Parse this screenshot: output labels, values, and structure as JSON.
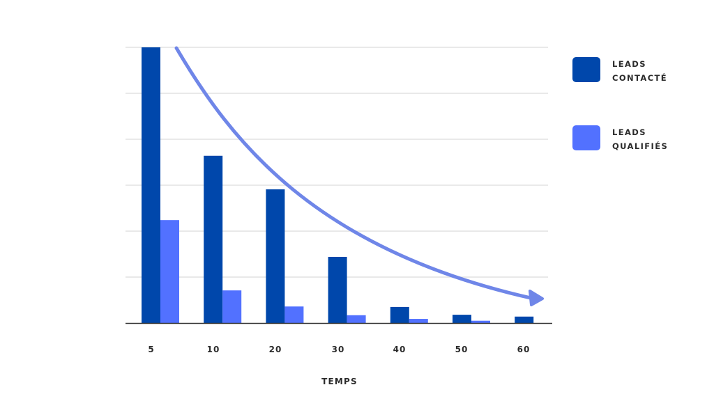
{
  "chart_data": {
    "type": "bar",
    "title": "",
    "xlabel": "TEMPS",
    "ylabel": "",
    "categories": [
      "5",
      "10",
      "20",
      "30",
      "40",
      "50",
      "60"
    ],
    "series": [
      {
        "name": "LEADS CONTACTÉ",
        "color": "#0047ab",
        "values": [
          60,
          36.4,
          29.1,
          14.4,
          3.5,
          1.8,
          1.4
        ]
      },
      {
        "name": "LEADS QUALIFIÉS",
        "color": "#5271ff",
        "values": [
          22.4,
          7.1,
          3.6,
          1.7,
          0.9,
          0.5,
          0
        ]
      }
    ],
    "ylim": [
      0,
      60
    ],
    "y_gridlines": [
      10,
      20,
      30,
      40,
      50,
      60
    ],
    "y_tick_labels_visible": false,
    "grid": true,
    "legend_position": "right",
    "annotation": {
      "type": "decreasing-trend-arrow",
      "color": "#6f86e8"
    }
  },
  "legend": {
    "items": [
      {
        "line1": "LEADS",
        "line2": "CONTACTÉ",
        "color": "#0047ab"
      },
      {
        "line1": "LEADS",
        "line2": "QUALIFIÉS",
        "color": "#5271ff"
      }
    ]
  },
  "axis": {
    "x_title": "TEMPS"
  }
}
